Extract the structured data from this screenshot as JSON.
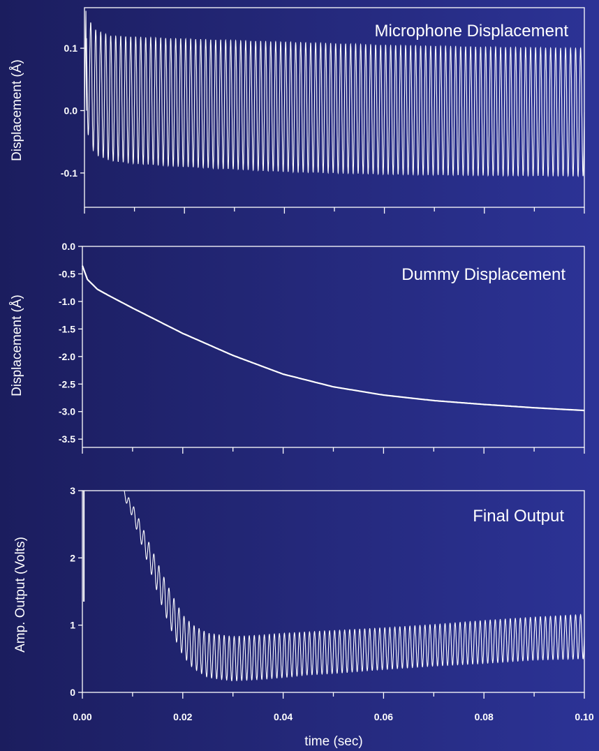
{
  "chart_data": [
    {
      "type": "line",
      "title": "Microphone Displacement",
      "xlabel": "",
      "ylabel": "Displacement (Å)",
      "xlim": [
        0.0,
        0.1
      ],
      "ylim": [
        -0.155,
        0.165
      ],
      "yticks": [
        "0.1",
        "0.0",
        "-0.1"
      ],
      "ytick_values": [
        0.1,
        0.0,
        -0.1
      ],
      "xtick_values": [
        0.0,
        0.01,
        0.02,
        0.03,
        0.04,
        0.05,
        0.06,
        0.07,
        0.08,
        0.09,
        0.1
      ],
      "xtick_labels": [],
      "signal": {
        "shape": "oscillation",
        "oscillation_frequency_hz": 1000,
        "initial_spike": 0.16,
        "envelope_start": 0.12,
        "envelope_end": 0.1,
        "lower_start": -0.08,
        "lower_end": -0.105
      },
      "series": [
        {
          "x": [
            0.0,
            0.002,
            0.005,
            0.01,
            0.02,
            0.04,
            0.06,
            0.08,
            0.1
          ],
          "upper": [
            0.16,
            0.13,
            0.12,
            0.118,
            0.115,
            0.11,
            0.105,
            0.102,
            0.1
          ],
          "lower": [
            -0.02,
            -0.07,
            -0.08,
            -0.085,
            -0.09,
            -0.098,
            -0.102,
            -0.104,
            -0.105
          ]
        }
      ]
    },
    {
      "type": "line",
      "title": "Dummy Displacement",
      "xlabel": "",
      "ylabel": "Displacement (Å)",
      "xlim": [
        0.0,
        0.1
      ],
      "ylim": [
        -3.65,
        0.0
      ],
      "yticks": [
        "0.0",
        "-0.5",
        "-1.0",
        "-1.5",
        "-2.0",
        "-2.5",
        "-3.0",
        "-3.5"
      ],
      "ytick_values": [
        0.0,
        -0.5,
        -1.0,
        -1.5,
        -2.0,
        -2.5,
        -3.0,
        -3.5
      ],
      "xtick_values": [
        0.0,
        0.01,
        0.02,
        0.03,
        0.04,
        0.05,
        0.06,
        0.07,
        0.08,
        0.09,
        0.1
      ],
      "xtick_labels": [],
      "series": [
        {
          "x": [
            0.0,
            0.001,
            0.003,
            0.005,
            0.01,
            0.02,
            0.03,
            0.04,
            0.05,
            0.06,
            0.07,
            0.08,
            0.09,
            0.1
          ],
          "y": [
            -0.35,
            -0.6,
            -0.78,
            -0.88,
            -1.12,
            -1.58,
            -1.98,
            -2.32,
            -2.55,
            -2.7,
            -2.8,
            -2.87,
            -2.93,
            -2.98
          ]
        }
      ]
    },
    {
      "type": "line",
      "title": "Final Output",
      "xlabel": "time (sec)",
      "ylabel": "Amp. Output (Volts)",
      "xlim": [
        0.0,
        0.1
      ],
      "ylim": [
        0.0,
        3.0
      ],
      "yticks": [
        "3",
        "2",
        "1",
        "0"
      ],
      "ytick_values": [
        3,
        2,
        1,
        0
      ],
      "xtick_values": [
        0.0,
        0.01,
        0.02,
        0.03,
        0.04,
        0.05,
        0.06,
        0.07,
        0.08,
        0.09,
        0.1
      ],
      "xtick_labels": [
        "0.00",
        "",
        "0.02",
        "",
        "0.04",
        "",
        "0.06",
        "",
        "0.08",
        "",
        "0.10"
      ],
      "signal": {
        "shape": "oscillation",
        "oscillation_frequency_hz": 1000,
        "initial_spike_until_x": 0.0006
      },
      "series": [
        {
          "x": [
            0.008,
            0.01,
            0.012,
            0.014,
            0.016,
            0.018,
            0.02,
            0.022,
            0.025,
            0.03,
            0.035,
            0.04,
            0.045,
            0.05,
            0.06,
            0.07,
            0.08,
            0.09,
            0.1
          ],
          "center": [
            3.0,
            2.7,
            2.3,
            1.9,
            1.5,
            1.15,
            0.85,
            0.68,
            0.55,
            0.5,
            0.52,
            0.55,
            0.58,
            0.6,
            0.65,
            0.7,
            0.75,
            0.8,
            0.83
          ],
          "amplitude": [
            0.05,
            0.1,
            0.15,
            0.2,
            0.25,
            0.28,
            0.3,
            0.32,
            0.33,
            0.33,
            0.33,
            0.33,
            0.32,
            0.32,
            0.31,
            0.31,
            0.32,
            0.32,
            0.33
          ]
        }
      ]
    }
  ]
}
